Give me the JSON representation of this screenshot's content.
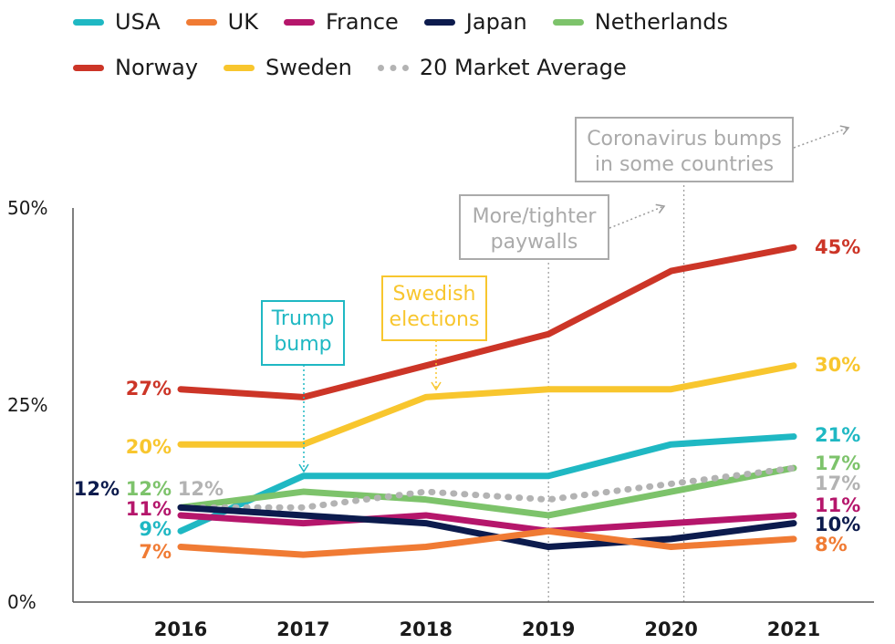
{
  "legend": [
    {
      "name": "USA",
      "color": "#1fb8c3"
    },
    {
      "name": "UK",
      "color": "#f07b34"
    },
    {
      "name": "France",
      "color": "#b5166b"
    },
    {
      "name": "Japan",
      "color": "#0c1b4d"
    },
    {
      "name": "Netherlands",
      "color": "#7dc36b"
    },
    {
      "name": "Norway",
      "color": "#cc3527"
    },
    {
      "name": "Sweden",
      "color": "#f8c62e"
    },
    {
      "name": "20 Market Average",
      "color": "#b3b3b3"
    }
  ],
  "chart_data": {
    "type": "line",
    "x": [
      2016,
      2017,
      2018,
      2019,
      2020,
      2021
    ],
    "y_tick_labels": [
      "50%",
      "25%",
      "0%"
    ],
    "ylim": [
      0,
      50
    ],
    "grid": false,
    "legend_placement": "top",
    "series": [
      {
        "name": "Norway",
        "color": "#cc3527",
        "dotted": false,
        "values": [
          27,
          26,
          30,
          34,
          42,
          45
        ]
      },
      {
        "name": "Sweden",
        "color": "#f8c62e",
        "dotted": false,
        "values": [
          20,
          20,
          26,
          27,
          27,
          30
        ]
      },
      {
        "name": "USA",
        "color": "#1fb8c3",
        "dotted": false,
        "values": [
          9,
          16,
          16,
          16,
          20,
          21
        ]
      },
      {
        "name": "Netherlands",
        "color": "#7dc36b",
        "dotted": false,
        "values": [
          12,
          14,
          13,
          11,
          14,
          17
        ]
      },
      {
        "name": "20 Market Average",
        "color": "#b3b3b3",
        "dotted": true,
        "values": [
          12,
          12,
          14,
          13,
          15,
          17
        ]
      },
      {
        "name": "France",
        "color": "#b5166b",
        "dotted": false,
        "values": [
          11,
          10,
          11,
          9,
          10,
          11
        ]
      },
      {
        "name": "Japan",
        "color": "#0c1b4d",
        "dotted": false,
        "values": [
          12,
          11,
          10,
          7,
          8,
          10
        ]
      },
      {
        "name": "UK",
        "color": "#f07b34",
        "dotted": false,
        "values": [
          7,
          6,
          7,
          9,
          7,
          8
        ]
      }
    ],
    "start_labels": [
      {
        "text": "27%",
        "color": "#cc3527"
      },
      {
        "text": "20%",
        "color": "#f8c62e"
      },
      {
        "text": "12%",
        "color": "#0c1b4d"
      },
      {
        "text": "12%",
        "color": "#7dc36b"
      },
      {
        "text": "12%",
        "color": "#b3b3b3"
      },
      {
        "text": "11%",
        "color": "#b5166b"
      },
      {
        "text": "9%",
        "color": "#1fb8c3"
      },
      {
        "text": "7%",
        "color": "#f07b34"
      }
    ],
    "end_labels": [
      {
        "text": "45%",
        "color": "#cc3527"
      },
      {
        "text": "30%",
        "color": "#f8c62e"
      },
      {
        "text": "21%",
        "color": "#1fb8c3"
      },
      {
        "text": "17%",
        "color": "#7dc36b"
      },
      {
        "text": "17%",
        "color": "#b3b3b3"
      },
      {
        "text": "11%",
        "color": "#b5166b"
      },
      {
        "text": "10%",
        "color": "#0c1b4d"
      },
      {
        "text": "8%",
        "color": "#f07b34"
      }
    ],
    "annotations": [
      {
        "lines": [
          "Trump",
          "bump"
        ],
        "color": "#1fb8c3"
      },
      {
        "lines": [
          "Swedish",
          "elections"
        ],
        "color": "#f8c62e"
      },
      {
        "lines": [
          "More/tighter",
          "paywalls"
        ],
        "color": "#aaaaaa"
      },
      {
        "lines": [
          "Coronavirus bumps",
          "in some countries"
        ],
        "color": "#aaaaaa"
      }
    ]
  }
}
